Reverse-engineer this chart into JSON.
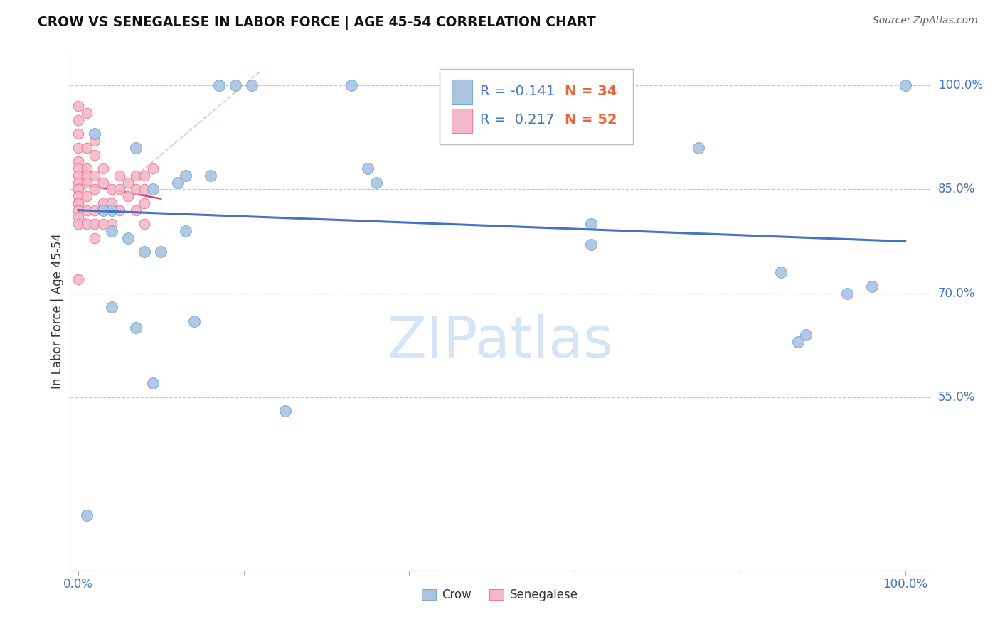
{
  "title": "CROW VS SENEGALESE IN LABOR FORCE | AGE 45-54 CORRELATION CHART",
  "source": "Source: ZipAtlas.com",
  "ylabel": "In Labor Force | Age 45-54",
  "xlim": [
    -0.01,
    1.03
  ],
  "ylim": [
    0.3,
    1.05
  ],
  "ytick_positions": [
    0.55,
    0.7,
    0.85,
    1.0
  ],
  "ytick_labels": [
    "55.0%",
    "70.0%",
    "85.0%",
    "100.0%"
  ],
  "grid_color": "#c8c8c8",
  "background_color": "#ffffff",
  "crow_color": "#aac4e0",
  "crow_edge_color": "#7aaad0",
  "senegalese_color": "#f5b8c8",
  "senegalese_edge_color": "#e8809a",
  "trend_crow_color": "#4472c4",
  "trend_senegalese_color": "#d04070",
  "legend_crow_R": "-0.141",
  "legend_crow_N": "34",
  "legend_senegalese_R": "0.217",
  "legend_senegalese_N": "52",
  "legend_R_color": "#4472c4",
  "legend_N_color": "#e8643c",
  "crow_x": [
    0.17,
    0.19,
    0.21,
    0.33,
    0.02,
    0.07,
    0.13,
    0.16,
    0.03,
    0.04,
    0.09,
    0.12,
    0.35,
    0.36,
    0.62,
    0.75,
    0.93,
    0.96,
    0.04,
    0.06,
    0.08,
    0.1,
    0.13,
    0.04,
    0.07,
    0.01,
    0.09,
    1.0,
    0.62,
    0.85,
    0.87,
    0.88,
    0.14,
    0.25
  ],
  "crow_y": [
    1.0,
    1.0,
    1.0,
    1.0,
    0.93,
    0.91,
    0.87,
    0.87,
    0.82,
    0.82,
    0.85,
    0.86,
    0.88,
    0.86,
    0.8,
    0.91,
    0.7,
    0.71,
    0.79,
    0.78,
    0.76,
    0.76,
    0.79,
    0.68,
    0.65,
    0.38,
    0.57,
    1.0,
    0.77,
    0.73,
    0.63,
    0.64,
    0.66,
    0.53
  ],
  "senegalese_x": [
    0.0,
    0.0,
    0.0,
    0.0,
    0.0,
    0.0,
    0.0,
    0.0,
    0.0,
    0.0,
    0.0,
    0.0,
    0.0,
    0.0,
    0.0,
    0.0,
    0.0,
    0.01,
    0.01,
    0.01,
    0.01,
    0.01,
    0.01,
    0.01,
    0.01,
    0.02,
    0.02,
    0.02,
    0.02,
    0.02,
    0.02,
    0.02,
    0.03,
    0.03,
    0.03,
    0.03,
    0.04,
    0.04,
    0.04,
    0.05,
    0.05,
    0.05,
    0.06,
    0.06,
    0.07,
    0.07,
    0.07,
    0.08,
    0.08,
    0.08,
    0.08,
    0.09
  ],
  "senegalese_y": [
    0.97,
    0.95,
    0.93,
    0.91,
    0.89,
    0.88,
    0.87,
    0.86,
    0.85,
    0.85,
    0.84,
    0.83,
    0.83,
    0.82,
    0.81,
    0.8,
    0.72,
    0.96,
    0.91,
    0.88,
    0.87,
    0.86,
    0.84,
    0.82,
    0.8,
    0.92,
    0.9,
    0.87,
    0.85,
    0.82,
    0.8,
    0.78,
    0.88,
    0.86,
    0.83,
    0.8,
    0.85,
    0.83,
    0.8,
    0.87,
    0.85,
    0.82,
    0.86,
    0.84,
    0.87,
    0.85,
    0.82,
    0.87,
    0.85,
    0.83,
    0.8,
    0.88
  ],
  "watermark_text": "ZIPatlas",
  "watermark_color": "#d5e5f5",
  "ref_line_x": [
    0.0,
    0.22
  ],
  "ref_line_y": [
    0.8,
    1.02
  ]
}
